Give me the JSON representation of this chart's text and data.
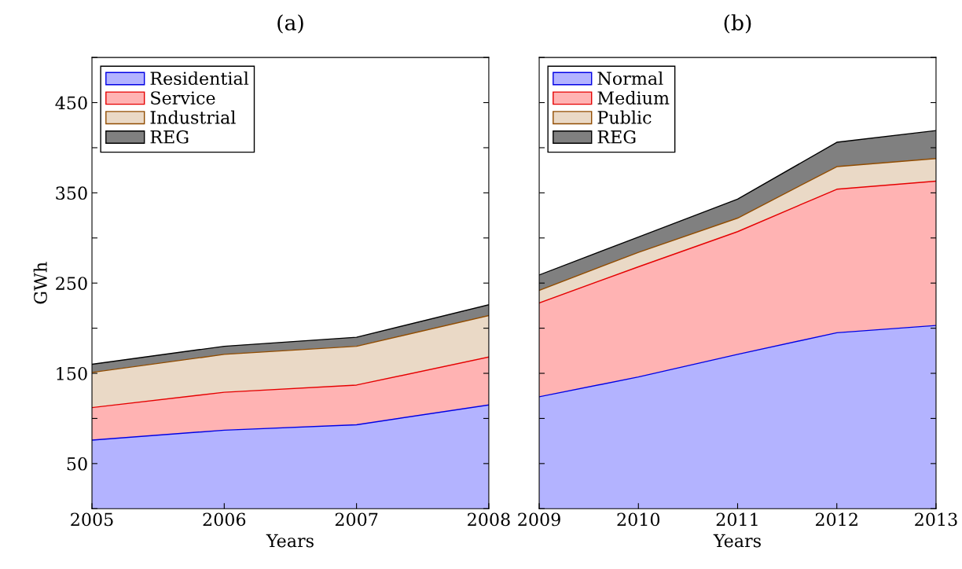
{
  "chart_data": [
    {
      "type": "area",
      "stacked": true,
      "title": "(a)",
      "xlabel": "Years",
      "ylabel": "GWh",
      "x": [
        2005,
        2006,
        2007,
        2008
      ],
      "xlim": [
        2005,
        2008
      ],
      "xticks": [
        2005,
        2006,
        2007,
        2008
      ],
      "ylim": [
        0,
        500
      ],
      "yticks": [
        {
          "value": 0,
          "label": null
        },
        50,
        {
          "value": 100,
          "label": null
        },
        150,
        {
          "value": 200,
          "label": null
        },
        250,
        {
          "value": 300,
          "label": null
        },
        350,
        {
          "value": 400,
          "label": null
        },
        450,
        {
          "value": 500,
          "label": null
        }
      ],
      "legend": "top left",
      "grid": false,
      "series": [
        {
          "name": "Residential",
          "color": "#b3b3ff",
          "values": [
            76,
            87,
            93,
            115
          ]
        },
        {
          "name": "Service",
          "color": "#ffb3b3",
          "values": [
            36,
            42,
            44,
            53
          ]
        },
        {
          "name": "Industrial",
          "color": "#ead9c6",
          "values": [
            39,
            42,
            43,
            46
          ]
        },
        {
          "name": "REG",
          "color": "#808080",
          "values": [
            9,
            9,
            10,
            12
          ]
        }
      ]
    },
    {
      "type": "area",
      "stacked": true,
      "title": "(b)",
      "xlabel": "Years",
      "x": [
        2009,
        2010,
        2011,
        2012,
        2013
      ],
      "xlim": [
        2009,
        2013
      ],
      "xticks": [
        2009,
        2010,
        2011,
        2012,
        2013
      ],
      "ylim": [
        0,
        500
      ],
      "yticks": [
        {
          "value": 0,
          "label": null
        },
        {
          "value": 50,
          "label": null
        },
        {
          "value": 100,
          "label": null
        },
        {
          "value": 150,
          "label": null
        },
        {
          "value": 200,
          "label": null
        },
        {
          "value": 250,
          "label": null
        },
        {
          "value": 300,
          "label": null
        },
        {
          "value": 350,
          "label": null
        },
        {
          "value": 400,
          "label": null
        },
        {
          "value": 450,
          "label": null
        },
        {
          "value": 500,
          "label": null
        }
      ],
      "tick_labels": "x",
      "legend": "top left",
      "grid": false,
      "series": [
        {
          "name": "Normal",
          "color": "#b3b3ff",
          "values": [
            124,
            146,
            171,
            195,
            203
          ]
        },
        {
          "name": "Medium",
          "color": "#ffb3b3",
          "values": [
            104,
            122,
            136,
            159,
            160
          ]
        },
        {
          "name": "Public",
          "color": "#ead9c6",
          "values": [
            14,
            16,
            15,
            25,
            25
          ]
        },
        {
          "name": "REG",
          "color": "#808080",
          "values": [
            17,
            17,
            21,
            27,
            31
          ]
        }
      ]
    }
  ]
}
